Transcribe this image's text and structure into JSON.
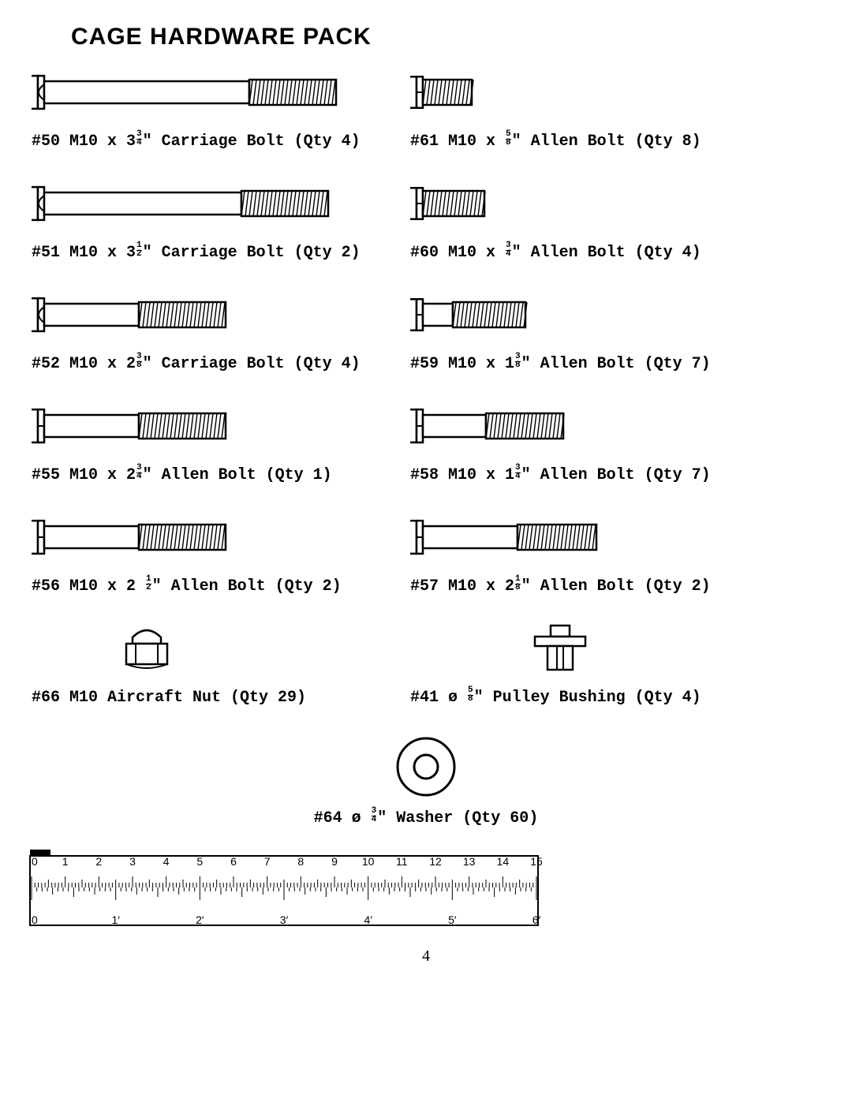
{
  "title": "CAGE HARDWARE PACK",
  "page_number": "4",
  "stroke": "#000000",
  "fill": "#ffffff",
  "items": [
    {
      "id": "50",
      "prefix": "#50 M10 x 3",
      "frac_n": "3",
      "frac_d": "4",
      "suffix": "\" Carriage Bolt (Qty 4)",
      "type": "carriage",
      "shaft": 260,
      "thread": 110,
      "head": 38
    },
    {
      "id": "61",
      "prefix": "#61 M10 x ",
      "frac_n": "5",
      "frac_d": "8",
      "suffix": "\" Allen Bolt (Qty 8)",
      "type": "allen",
      "shaft": 0,
      "thread": 62,
      "head": 36
    },
    {
      "id": "51",
      "prefix": "#51 M10 x 3",
      "frac_n": "1",
      "frac_d": "2",
      "suffix": "\" Carriage Bolt (Qty 2)",
      "type": "carriage",
      "shaft": 250,
      "thread": 110,
      "head": 38
    },
    {
      "id": "60",
      "prefix": "#60 M10 x ",
      "frac_n": "3",
      "frac_d": "4",
      "suffix": "\" Allen Bolt (Qty 4)",
      "type": "allen",
      "shaft": 0,
      "thread": 78,
      "head": 36
    },
    {
      "id": "52",
      "prefix": "#52 M10 x 2",
      "frac_n": "3",
      "frac_d": "8",
      "suffix": "\" Carriage Bolt (Qty 4)",
      "type": "carriage",
      "shaft": 120,
      "thread": 110,
      "head": 38
    },
    {
      "id": "59",
      "prefix": "#59 M10 x 1",
      "frac_n": "3",
      "frac_d": "8",
      "suffix": "\" Allen Bolt (Qty 7)",
      "type": "allen",
      "shaft": 38,
      "thread": 92,
      "head": 36
    },
    {
      "id": "55",
      "prefix": "#55 M10 x 2",
      "frac_n": "3",
      "frac_d": "4",
      "suffix": "\" Allen Bolt (Qty 1)",
      "type": "allen",
      "shaft": 120,
      "thread": 110,
      "head": 38
    },
    {
      "id": "58",
      "prefix": "#58 M10 x 1",
      "frac_n": "3",
      "frac_d": "4",
      "suffix": "\" Allen Bolt (Qty 7)",
      "type": "allen",
      "shaft": 80,
      "thread": 98,
      "head": 38
    },
    {
      "id": "56",
      "prefix": "#56 M10 x 2 ",
      "frac_n": "1",
      "frac_d": "2",
      "suffix": "\" Allen Bolt (Qty 2)",
      "type": "allen",
      "shaft": 120,
      "thread": 110,
      "head": 38
    },
    {
      "id": "57",
      "prefix": "#57 M10 x 2",
      "frac_n": "1",
      "frac_d": "8",
      "suffix": "\" Allen Bolt (Qty 2)",
      "type": "allen",
      "shaft": 120,
      "thread": 100,
      "head": 38
    },
    {
      "id": "66",
      "prefix": "#66 M10 Aircraft Nut (Qty 29)",
      "frac_n": "",
      "frac_d": "",
      "suffix": "",
      "type": "nut"
    },
    {
      "id": "41",
      "prefix": "#41 ø ",
      "frac_n": "5",
      "frac_d": "8",
      "suffix": "\" Pulley Bushing (Qty 4)",
      "type": "bushing"
    },
    {
      "id": "64",
      "prefix": "#64 ø ",
      "frac_n": "3",
      "frac_d": "4",
      "suffix": "\" Washer (Qty 60)",
      "type": "washer"
    }
  ],
  "ruler": {
    "cm_max": 15,
    "in_max": 6,
    "cm_label_size": 14,
    "in_label_size": 14
  }
}
